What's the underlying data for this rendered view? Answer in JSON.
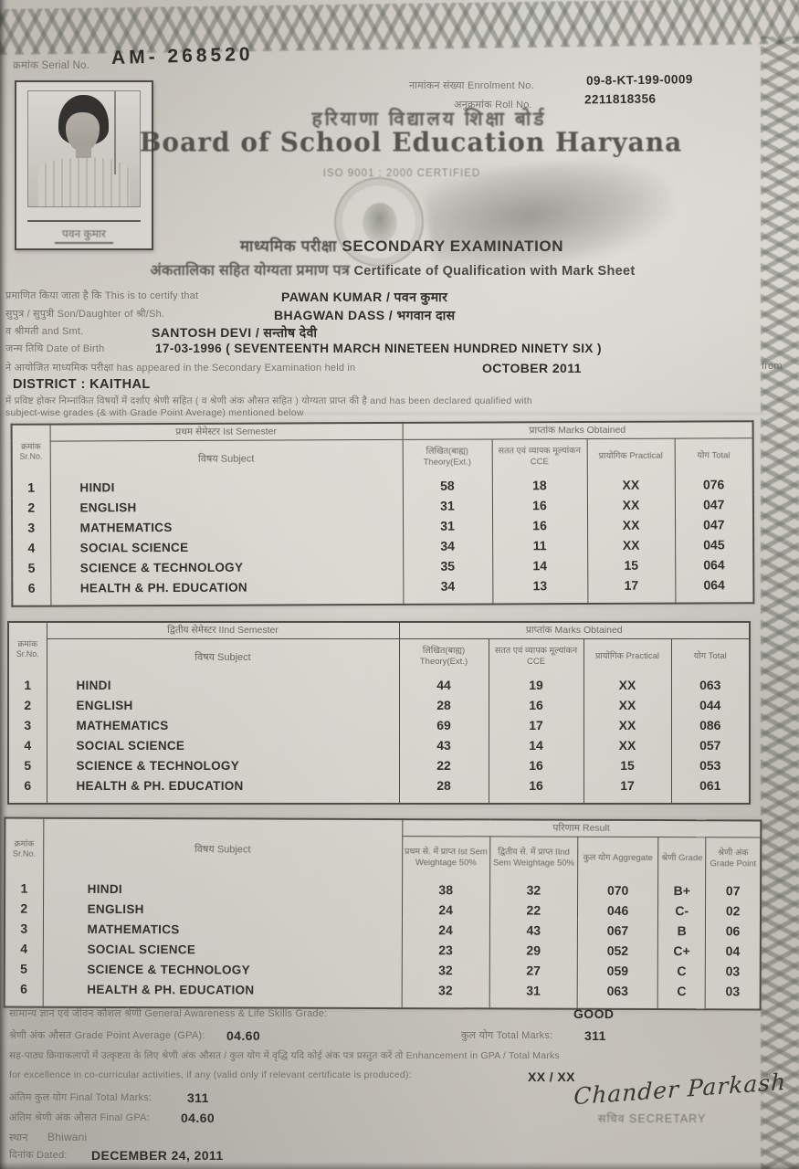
{
  "colors": {
    "paper": "#cfccc5",
    "ink": "#2f2e2a",
    "faint_ink": "#66655e",
    "border": "#4e4d47"
  },
  "doc": {
    "serial": {
      "label": "क्रमांक Serial No.",
      "value": "AM- 268520"
    },
    "enrolment": {
      "label": "नामांकन संख्या  Enrolment No.",
      "value": "09-8-KT-199-0009"
    },
    "roll": {
      "label": "अनुक्रमांक  Roll No.",
      "value": "2211818356"
    },
    "board": {
      "name_hindi": "हरियाणा  विद्यालय  शिक्षा  बोर्ड",
      "name_english": "Board of School Education Haryana",
      "iso": "ISO 9001 : 2000 CERTIFIED"
    },
    "title": {
      "exam_hi": "माध्यमिक परीक्षा",
      "exam_en": "SECONDARY EXAMINATION",
      "cert_hi": "अंकतालिका सहित योग्यता प्रमाण पत्र",
      "cert_en": "Certificate of Qualification with Mark Sheet"
    },
    "photo_caption": "पवन कुमार"
  },
  "candidate": {
    "certify_label": "प्रमाणित किया जाता है कि  This is to certify that",
    "name": "PAWAN KUMAR / पवन कुमार",
    "parent_label": "सुपुत्र / सुपुत्री  Son/Daughter of श्री/Sh.",
    "father_name": "BHAGWAN DASS / भगवान दास",
    "mother_label": "व श्रीमती  and Smt.",
    "mother_name": "SANTOSH DEVI / सन्तोष देवी",
    "dob_label": "जन्म तिथि  Date of Birth",
    "dob": "17-03-1996 ( SEVENTEENTH MARCH NINETEEN HUNDRED NINETY SIX )",
    "appeared_label": "ने आयोजित माध्यमिक परीक्षा  has appeared in the Secondary Examination held in",
    "session": "OCTOBER 2011",
    "from_label": "from",
    "district": "DISTRICT : KAITHAL",
    "qualified_line1": "में प्रविष्ट होकर निम्नांकित विषयों में दर्शाए श्रेणी सहित ( व श्रेणी अंक औसत सहित )  योग्यता प्राप्त की है   and has been declared qualified with",
    "qualified_line2": "subject-wise grades (& with Grade Point Average) mentioned below"
  },
  "table_headers": {
    "sr": "क्रमांक Sr.No.",
    "subject": "विषय  Subject",
    "marks_obtained": "प्राप्तांक  Marks Obtained",
    "theory": "लिखित(बाह्य) Theory(Ext.)",
    "cce": "सतत एवं व्यापक मूल्यांकन CCE",
    "practical": "प्रायोगिक Practical",
    "total": "योग Total",
    "sem1_title": "प्रथम सेमेस्टर  Ist Semester",
    "sem2_title": "द्वितीय सेमेस्टर  IInd Semester",
    "result_title": "परिणाम  Result",
    "sem1_weight": "प्रथम से. में प्राप्त Ist Sem Weightage 50%",
    "sem2_weight": "द्वितीय से. में प्राप्त IInd Sem Weightage 50%",
    "aggregate": "कुल योग Aggregate",
    "grade": "श्रेणी Grade",
    "grade_point": "श्रेणी अंक Grade Point"
  },
  "sem1": {
    "rows": [
      {
        "sr": "1",
        "subject": "HINDI",
        "theory": "58",
        "cce": "18",
        "practical": "XX",
        "total": "076"
      },
      {
        "sr": "2",
        "subject": "ENGLISH",
        "theory": "31",
        "cce": "16",
        "practical": "XX",
        "total": "047"
      },
      {
        "sr": "3",
        "subject": "MATHEMATICS",
        "theory": "31",
        "cce": "16",
        "practical": "XX",
        "total": "047"
      },
      {
        "sr": "4",
        "subject": "SOCIAL SCIENCE",
        "theory": "34",
        "cce": "11",
        "practical": "XX",
        "total": "045"
      },
      {
        "sr": "5",
        "subject": "SCIENCE & TECHNOLOGY",
        "theory": "35",
        "cce": "14",
        "practical": "15",
        "total": "064"
      },
      {
        "sr": "6",
        "subject": "HEALTH & PH. EDUCATION",
        "theory": "34",
        "cce": "13",
        "practical": "17",
        "total": "064"
      }
    ]
  },
  "sem2": {
    "rows": [
      {
        "sr": "1",
        "subject": "HINDI",
        "theory": "44",
        "cce": "19",
        "practical": "XX",
        "total": "063"
      },
      {
        "sr": "2",
        "subject": "ENGLISH",
        "theory": "28",
        "cce": "16",
        "practical": "XX",
        "total": "044"
      },
      {
        "sr": "3",
        "subject": "MATHEMATICS",
        "theory": "69",
        "cce": "17",
        "practical": "XX",
        "total": "086"
      },
      {
        "sr": "4",
        "subject": "SOCIAL SCIENCE",
        "theory": "43",
        "cce": "14",
        "practical": "XX",
        "total": "057"
      },
      {
        "sr": "5",
        "subject": "SCIENCE & TECHNOLOGY",
        "theory": "22",
        "cce": "16",
        "practical": "15",
        "total": "053"
      },
      {
        "sr": "6",
        "subject": "HEALTH & PH. EDUCATION",
        "theory": "28",
        "cce": "16",
        "practical": "17",
        "total": "061"
      }
    ]
  },
  "result": {
    "rows": [
      {
        "sr": "1",
        "subject": "HINDI",
        "sem1": "38",
        "sem2": "32",
        "aggregate": "070",
        "grade": "B+",
        "grade_point": "07"
      },
      {
        "sr": "2",
        "subject": "ENGLISH",
        "sem1": "24",
        "sem2": "22",
        "aggregate": "046",
        "grade": "C-",
        "grade_point": "02"
      },
      {
        "sr": "3",
        "subject": "MATHEMATICS",
        "sem1": "24",
        "sem2": "43",
        "aggregate": "067",
        "grade": "B",
        "grade_point": "06"
      },
      {
        "sr": "4",
        "subject": "SOCIAL SCIENCE",
        "sem1": "23",
        "sem2": "29",
        "aggregate": "052",
        "grade": "C+",
        "grade_point": "04"
      },
      {
        "sr": "5",
        "subject": "SCIENCE & TECHNOLOGY",
        "sem1": "32",
        "sem2": "27",
        "aggregate": "059",
        "grade": "C",
        "grade_point": "03"
      },
      {
        "sr": "6",
        "subject": "HEALTH & PH. EDUCATION",
        "sem1": "32",
        "sem2": "31",
        "aggregate": "063",
        "grade": "C",
        "grade_point": "03"
      }
    ]
  },
  "footer": {
    "awareness_label": "सामान्य ज्ञान एवं जीवन कौशल श्रेणी  General Awareness & Life Skills Grade:",
    "awareness_value": "GOOD",
    "gpa_label": "श्रेणी अंक औसत  Grade Point Average (GPA):",
    "gpa_value": "04.60",
    "total_marks_label": "कुल योग  Total Marks:",
    "total_marks_value": "311",
    "enhancement_line1": "सह-पाठ्य क्रियाकलापों में उत्कृष्टता के लिए श्रेणी अंक औसत / कुल योग में वृद्धि यदि कोई अंक पत्र प्रस्तुत करें तो   Enhancement in GPA / Total Marks",
    "enhancement_line2": "for excellence in co-curricular activities, if any (valid only if relevant certificate is produced):",
    "enhancement_value": "XX / XX",
    "final_total_label": "अंतिम कुल योग  Final Total Marks:",
    "final_total_value": "311",
    "final_gpa_label": "अंतिम श्रेणी अंक औसत  Final GPA:",
    "final_gpa_value": "04.60",
    "place_label": "स्थान",
    "place_value": "Bhiwani",
    "date_label": "दिनांक  Dated:",
    "date_value": "DECEMBER 24, 2011",
    "signature": "Chander Parkash",
    "secretary_label": "सचिव  SECRETARY"
  }
}
